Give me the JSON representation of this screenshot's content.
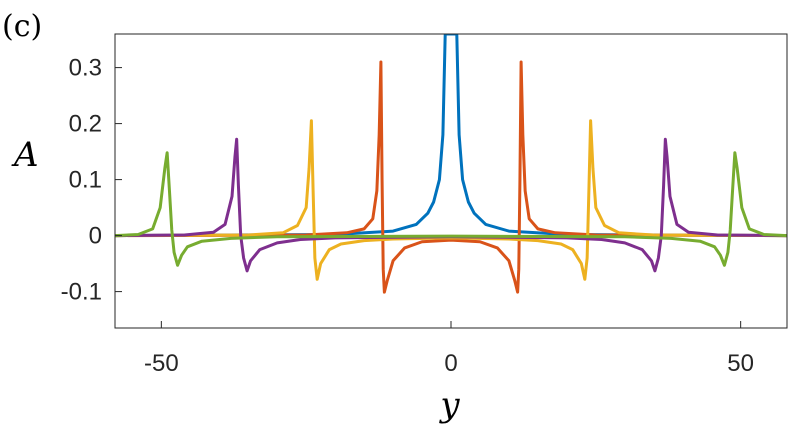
{
  "panel_label": "(c)",
  "chart_data": {
    "type": "line",
    "title": "",
    "xlabel": "y",
    "ylabel": "A",
    "xlim": [
      -58,
      58
    ],
    "ylim": [
      -0.165,
      0.36
    ],
    "xticks": [
      -50,
      0,
      50
    ],
    "xtick_labels": [
      "-50",
      "0",
      "50"
    ],
    "yticks": [
      -0.1,
      0,
      0.1,
      0.2,
      0.3
    ],
    "ytick_labels": [
      "-0.1",
      "0",
      "0.1",
      "0.2",
      "0.3"
    ],
    "grid": false,
    "legend": "none",
    "series": [
      {
        "color": "#0072BD",
        "peaks": [
          {
            "x": 0,
            "y": 0.36
          }
        ],
        "points": [
          [
            -58,
            0.0
          ],
          [
            -20,
            0.002
          ],
          [
            -10,
            0.008
          ],
          [
            -6,
            0.02
          ],
          [
            -4,
            0.04
          ],
          [
            -3,
            0.06
          ],
          [
            -2,
            0.1
          ],
          [
            -1.4,
            0.18
          ],
          [
            -1.0,
            0.36
          ],
          [
            1.0,
            0.36
          ],
          [
            1.4,
            0.18
          ],
          [
            2,
            0.1
          ],
          [
            3,
            0.06
          ],
          [
            4,
            0.04
          ],
          [
            6,
            0.02
          ],
          [
            10,
            0.008
          ],
          [
            20,
            0.002
          ],
          [
            58,
            0.0
          ]
        ]
      },
      {
        "color": "#D95319",
        "peaks": [
          {
            "x": -12,
            "y": 0.314
          },
          {
            "x": 12,
            "y": 0.314
          },
          {
            "x": -11.5,
            "y": -0.101
          },
          {
            "x": 11.5,
            "y": -0.101
          }
        ],
        "points": [
          [
            -58,
            0.0
          ],
          [
            -25,
            0.001
          ],
          [
            -18,
            0.005
          ],
          [
            -15,
            0.012
          ],
          [
            -13.5,
            0.03
          ],
          [
            -12.8,
            0.08
          ],
          [
            -12.4,
            0.18
          ],
          [
            -12.1,
            0.31
          ],
          [
            -11.9,
            0.1
          ],
          [
            -11.7,
            -0.06
          ],
          [
            -11.5,
            -0.101
          ],
          [
            -11.0,
            -0.08
          ],
          [
            -10,
            -0.045
          ],
          [
            -8,
            -0.022
          ],
          [
            -5,
            -0.011
          ],
          [
            0,
            -0.008
          ],
          [
            5,
            -0.011
          ],
          [
            8,
            -0.022
          ],
          [
            10,
            -0.045
          ],
          [
            11.0,
            -0.08
          ],
          [
            11.5,
            -0.101
          ],
          [
            11.7,
            -0.06
          ],
          [
            11.9,
            0.1
          ],
          [
            12.1,
            0.31
          ],
          [
            12.4,
            0.18
          ],
          [
            12.8,
            0.08
          ],
          [
            13.5,
            0.03
          ],
          [
            15,
            0.012
          ],
          [
            18,
            0.005
          ],
          [
            25,
            0.001
          ],
          [
            58,
            0.0
          ]
        ]
      },
      {
        "color": "#EDB120",
        "peaks": [
          {
            "x": -24,
            "y": 0.208
          },
          {
            "x": 24,
            "y": 0.208
          },
          {
            "x": -23,
            "y": -0.078
          },
          {
            "x": 23,
            "y": -0.078
          }
        ],
        "points": [
          [
            -58,
            0.0
          ],
          [
            -35,
            0.001
          ],
          [
            -29,
            0.005
          ],
          [
            -26.5,
            0.018
          ],
          [
            -25,
            0.05
          ],
          [
            -24.5,
            0.12
          ],
          [
            -24.1,
            0.205
          ],
          [
            -23.8,
            0.08
          ],
          [
            -23.5,
            -0.04
          ],
          [
            -23.1,
            -0.078
          ],
          [
            -22.5,
            -0.05
          ],
          [
            -21,
            -0.025
          ],
          [
            -19,
            -0.015
          ],
          [
            -15,
            -0.009
          ],
          [
            -10,
            -0.006
          ],
          [
            0,
            -0.004
          ],
          [
            10,
            -0.006
          ],
          [
            15,
            -0.009
          ],
          [
            19,
            -0.015
          ],
          [
            21,
            -0.025
          ],
          [
            22.5,
            -0.05
          ],
          [
            23.1,
            -0.078
          ],
          [
            23.5,
            -0.04
          ],
          [
            23.8,
            0.08
          ],
          [
            24.1,
            0.205
          ],
          [
            24.5,
            0.12
          ],
          [
            25,
            0.05
          ],
          [
            26.5,
            0.018
          ],
          [
            29,
            0.005
          ],
          [
            35,
            0.001
          ],
          [
            58,
            0.0
          ]
        ]
      },
      {
        "color": "#7E2F8E",
        "peaks": [
          {
            "x": -37,
            "y": 0.172
          },
          {
            "x": 37,
            "y": 0.172
          },
          {
            "x": -35,
            "y": -0.063
          },
          {
            "x": 35,
            "y": -0.063
          }
        ],
        "points": [
          [
            -58,
            0.0
          ],
          [
            -46,
            0.001
          ],
          [
            -41,
            0.006
          ],
          [
            -39,
            0.02
          ],
          [
            -37.8,
            0.07
          ],
          [
            -37.3,
            0.14
          ],
          [
            -37.0,
            0.172
          ],
          [
            -36.7,
            0.09
          ],
          [
            -36.3,
            0.0
          ],
          [
            -35.8,
            -0.04
          ],
          [
            -35.2,
            -0.063
          ],
          [
            -34.6,
            -0.045
          ],
          [
            -33,
            -0.025
          ],
          [
            -30,
            -0.013
          ],
          [
            -26,
            -0.007
          ],
          [
            -20,
            -0.004
          ],
          [
            0,
            -0.002
          ],
          [
            20,
            -0.004
          ],
          [
            26,
            -0.007
          ],
          [
            30,
            -0.013
          ],
          [
            33,
            -0.025
          ],
          [
            34.6,
            -0.045
          ],
          [
            35.2,
            -0.063
          ],
          [
            35.8,
            -0.04
          ],
          [
            36.3,
            0.0
          ],
          [
            36.7,
            0.09
          ],
          [
            37.0,
            0.172
          ],
          [
            37.3,
            0.14
          ],
          [
            37.8,
            0.07
          ],
          [
            39,
            0.02
          ],
          [
            41,
            0.006
          ],
          [
            46,
            0.001
          ],
          [
            58,
            0.0
          ]
        ]
      },
      {
        "color": "#77AC30",
        "peaks": [
          {
            "x": -49,
            "y": 0.148
          },
          {
            "x": 49,
            "y": 0.148
          },
          {
            "x": -47,
            "y": -0.053
          },
          {
            "x": 47,
            "y": -0.053
          }
        ],
        "points": [
          [
            -58,
            0.0
          ],
          [
            -54,
            0.002
          ],
          [
            -51.5,
            0.012
          ],
          [
            -50.2,
            0.05
          ],
          [
            -49.4,
            0.12
          ],
          [
            -49.0,
            0.148
          ],
          [
            -48.6,
            0.08
          ],
          [
            -48.2,
            0.01
          ],
          [
            -47.8,
            -0.03
          ],
          [
            -47.2,
            -0.053
          ],
          [
            -46.5,
            -0.035
          ],
          [
            -45.5,
            -0.02
          ],
          [
            -43,
            -0.01
          ],
          [
            -38,
            -0.005
          ],
          [
            -30,
            -0.002
          ],
          [
            0,
            -0.001
          ],
          [
            30,
            -0.002
          ],
          [
            38,
            -0.005
          ],
          [
            43,
            -0.01
          ],
          [
            45.5,
            -0.02
          ],
          [
            46.5,
            -0.035
          ],
          [
            47.2,
            -0.053
          ],
          [
            47.8,
            -0.03
          ],
          [
            48.2,
            0.01
          ],
          [
            48.6,
            0.08
          ],
          [
            49.0,
            0.148
          ],
          [
            49.4,
            0.12
          ],
          [
            50.2,
            0.05
          ],
          [
            51.5,
            0.012
          ],
          [
            54,
            0.002
          ],
          [
            58,
            0.0
          ]
        ]
      }
    ]
  }
}
